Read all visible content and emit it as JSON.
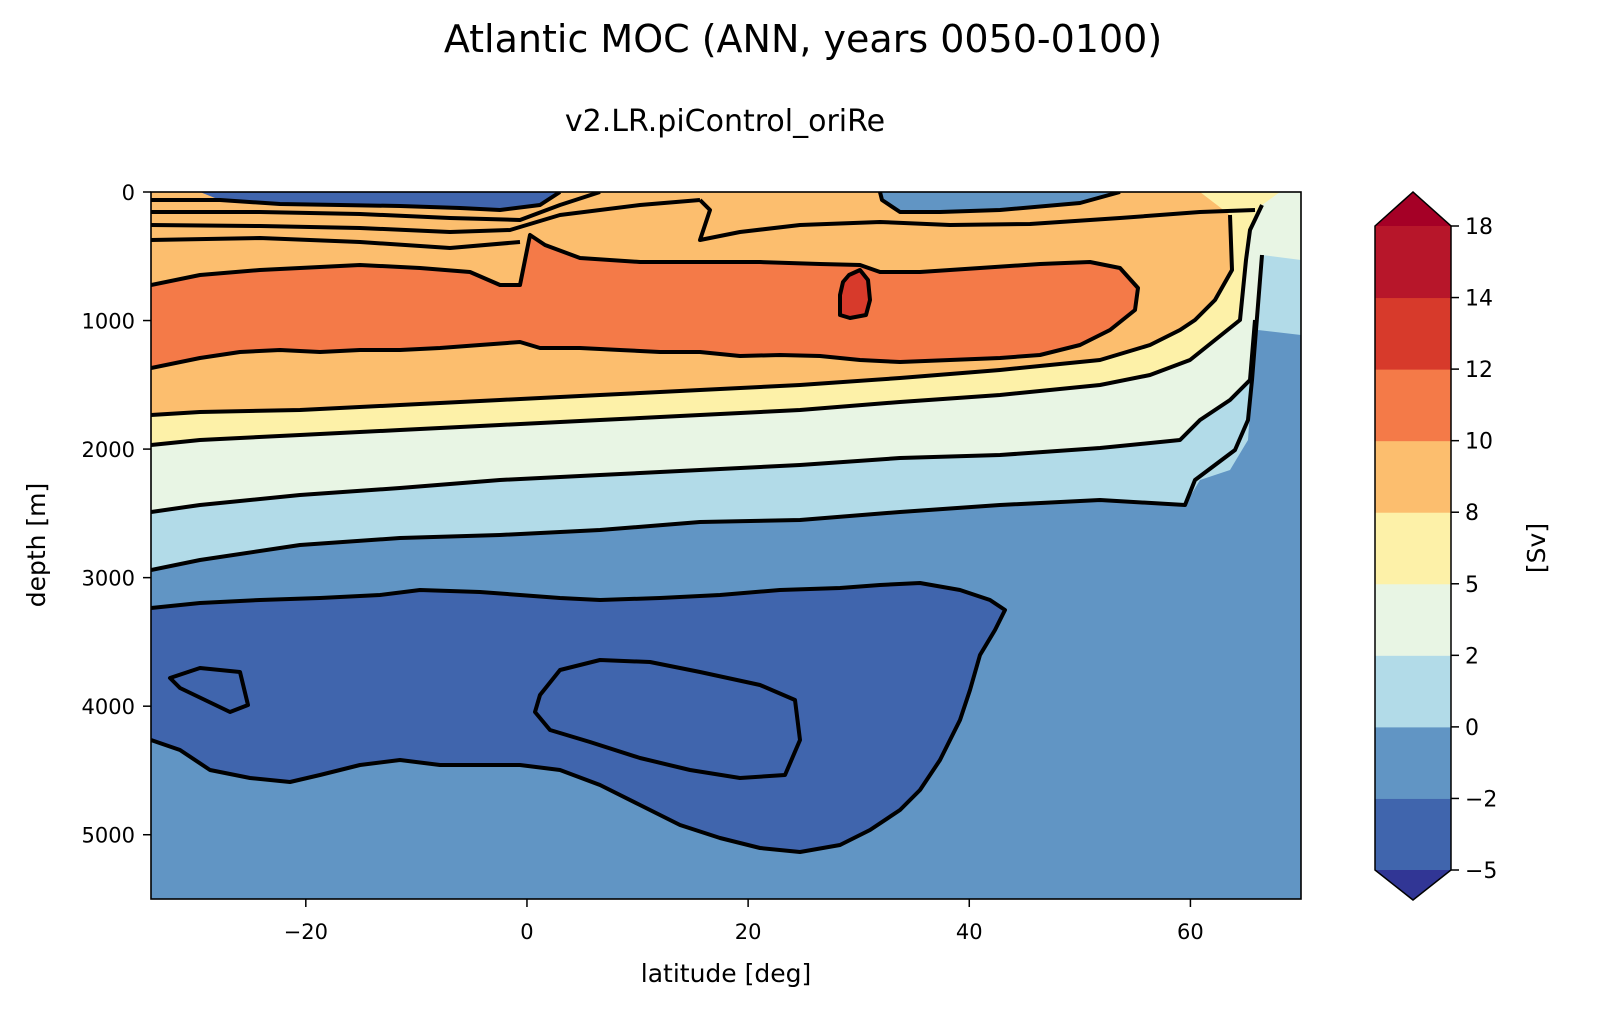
{
  "chart_data": {
    "type": "contour",
    "title": "Atlantic MOC (ANN, years 0050-0100)",
    "subtitle": "v2.LR.piControl_oriRe",
    "xlabel": "latitude [deg]",
    "ylabel": "depth [m]",
    "xlim": [
      -34,
      70
    ],
    "ylim": [
      5500,
      0
    ],
    "xticks": [
      -20,
      0,
      20,
      40,
      60
    ],
    "yticks": [
      0,
      1000,
      2000,
      3000,
      4000,
      5000
    ],
    "colorbar": {
      "label": "[Sv]",
      "levels": [
        -5,
        -2,
        0,
        2,
        5,
        8,
        10,
        12,
        14,
        18
      ],
      "ticklabels": [
        "−5",
        "−2",
        "0",
        "2",
        "5",
        "8",
        "10",
        "12",
        "14",
        "18"
      ],
      "colors": [
        "#4065ad",
        "#6195c4",
        "#b2dbe8",
        "#e8f5e4",
        "#fdf1a8",
        "#fcbe6e",
        "#f47a48",
        "#d73a2b",
        "#b7162a"
      ],
      "under_color": "#313695",
      "over_color": "#a50026",
      "extend": "both"
    },
    "contour_lines": "black",
    "features": [
      {
        "name": "upper-cell-core",
        "range_sv": [
          10,
          12
        ],
        "lat_range": [
          -34,
          55
        ],
        "depth_range_m": [
          350,
          1300
        ]
      },
      {
        "name": "upper-cell-maximum",
        "range_sv": [
          12,
          14
        ],
        "lat_approx": 29,
        "depth_approx_m": 800
      },
      {
        "name": "abyssal-cell",
        "range_sv": [
          -5,
          -2
        ],
        "lat_range": [
          -34,
          43
        ],
        "depth_range_m": [
          3100,
          5100
        ]
      }
    ]
  }
}
